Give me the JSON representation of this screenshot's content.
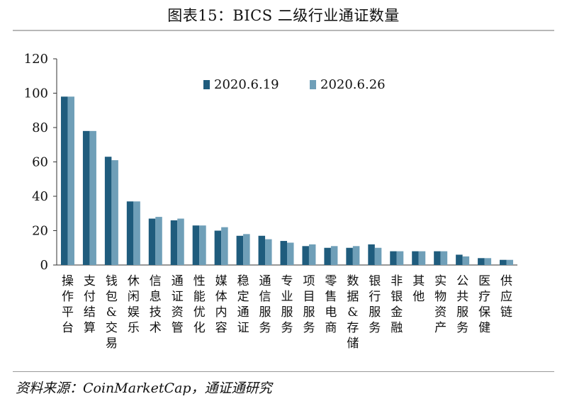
{
  "title": "图表15：BICS 二级行业通证数量",
  "source": "资料来源：CoinMarketCap，通证通研究",
  "colors": {
    "series1": "#1f5c7d",
    "series2": "#6f9fb8"
  },
  "chart_data": {
    "type": "bar",
    "title": "图表15：BICS 二级行业通证数量",
    "xlabel": "",
    "ylabel": "",
    "ylim": [
      0,
      120
    ],
    "yticks": [
      0,
      20,
      40,
      60,
      80,
      100,
      120
    ],
    "grid": false,
    "legend_position": "top-center",
    "categories": [
      "操作平台",
      "支付结算",
      "钱包&交易",
      "休闲娱乐",
      "信息技术",
      "通证资管",
      "性能优化",
      "媒体内容",
      "稳定通证",
      "通信服务",
      "专业服务",
      "项目服务",
      "零售电商",
      "数据&存储",
      "银行服务",
      "非银金融",
      "其他",
      "实物资产",
      "公共服务",
      "医疗保健",
      "供应链"
    ],
    "series": [
      {
        "name": "2020.6.19",
        "values": [
          98,
          78,
          63,
          37,
          27,
          26,
          23,
          20,
          17,
          17,
          14,
          11,
          10,
          10,
          12,
          8,
          8,
          8,
          6,
          4,
          3
        ]
      },
      {
        "name": "2020.6.26",
        "values": [
          98,
          78,
          61,
          37,
          28,
          27,
          23,
          22,
          18,
          15,
          13,
          12,
          11,
          11,
          10,
          8,
          8,
          8,
          5,
          4,
          3
        ]
      }
    ]
  }
}
